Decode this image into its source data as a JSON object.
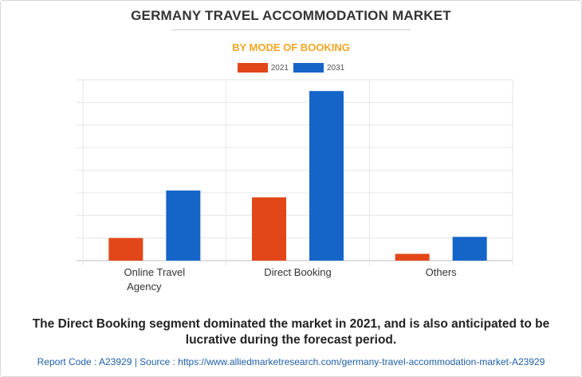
{
  "header": {
    "title": "GERMANY TRAVEL ACCOMMODATION MARKET",
    "subtitle": "BY MODE OF BOOKING"
  },
  "colors": {
    "series_2021": "#e2471a",
    "series_2031": "#1565c8",
    "subtitle": "#f5a623",
    "footer": "#1f5fa8"
  },
  "chart_data": {
    "type": "bar",
    "categories": [
      "Online Travel Agency",
      "Direct Booking",
      "Others"
    ],
    "category_lines": [
      [
        "Online Travel",
        "Agency"
      ],
      [
        "Direct Booking"
      ],
      [
        "Others"
      ]
    ],
    "series": [
      {
        "name": "2021",
        "values": [
          1.0,
          2.8,
          0.3
        ]
      },
      {
        "name": "2031",
        "values": [
          3.1,
          7.5,
          1.05
        ]
      }
    ],
    "ylim": [
      0,
      8
    ],
    "y_gridlines": 8,
    "grid": true,
    "legend": "top-center",
    "xlabel": "",
    "ylabel": ""
  },
  "caption": "The Direct Booking segment dominated the market in 2021, and is also anticipated to be lucrative during the forecast period.",
  "footer": "Report Code : A23929  |  Source : https://www.alliedmarketresearch.com/germany-travel-accommodation-market-A23929"
}
